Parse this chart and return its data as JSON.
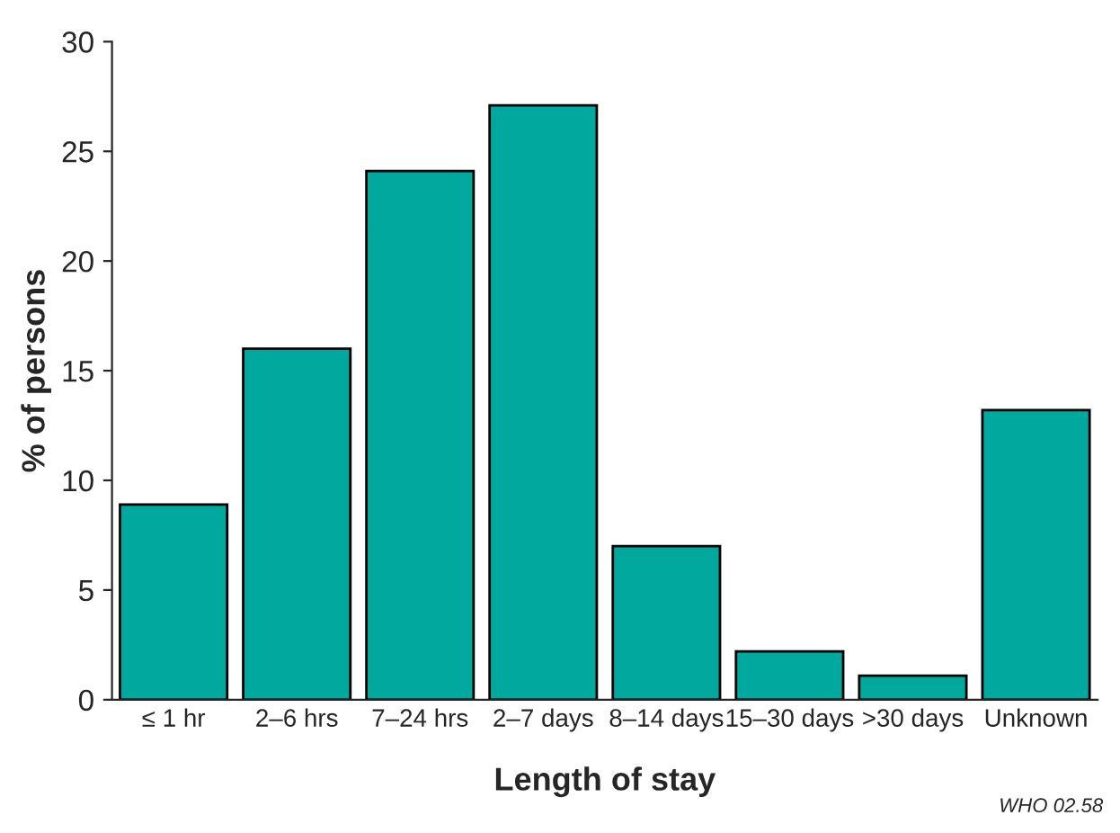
{
  "chart_data": {
    "type": "bar",
    "xlabel": "Length of stay",
    "ylabel": "% of persons",
    "categories": [
      "≤ 1 hr",
      "2–6 hrs",
      "7–24 hrs",
      "2–7 days",
      "8–14 days",
      "15–30 days",
      ">30 days",
      "Unknown"
    ],
    "values": [
      8.9,
      16.0,
      24.1,
      27.1,
      7.0,
      2.2,
      1.1,
      13.2
    ],
    "color": "#00a89d",
    "ylim": [
      0,
      30
    ],
    "yticks": [
      0,
      5,
      10,
      15,
      20,
      25,
      30
    ],
    "grid": false,
    "legend": false,
    "annotations": [
      "WHO 02.58"
    ]
  }
}
